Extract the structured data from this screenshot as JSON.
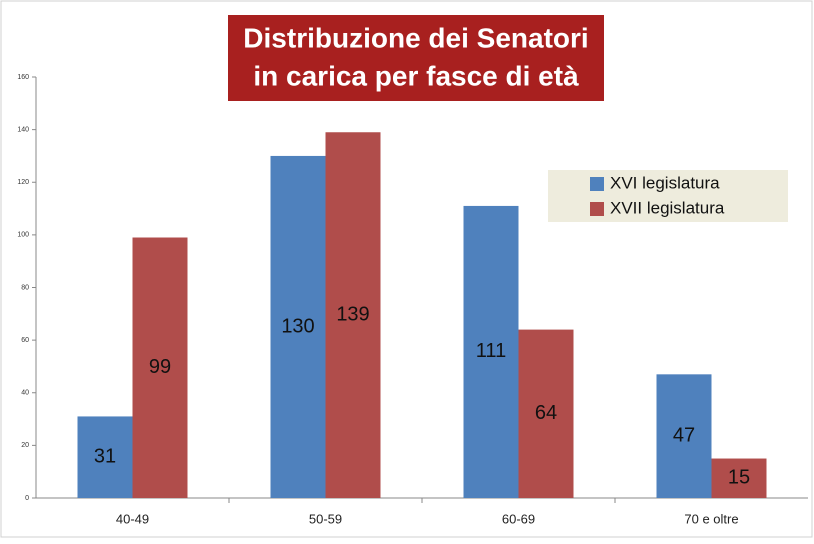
{
  "chart_data": {
    "type": "bar",
    "title": [
      "Distribuzione dei Senatori",
      "in carica per fasce di età"
    ],
    "categories": [
      "40-49",
      "50-59",
      "60-69",
      "70 e oltre"
    ],
    "series": [
      {
        "name": "XVI legislatura",
        "color": "#4f81bd",
        "values": [
          31,
          130,
          111,
          47
        ]
      },
      {
        "name": "XVII legislatura",
        "color": "#b04d4b",
        "values": [
          99,
          139,
          64,
          15
        ]
      }
    ],
    "ylim": [
      0,
      160
    ],
    "yticks": [
      0,
      20,
      40,
      60,
      80,
      100,
      120,
      140,
      160
    ],
    "legend": "upper right"
  }
}
